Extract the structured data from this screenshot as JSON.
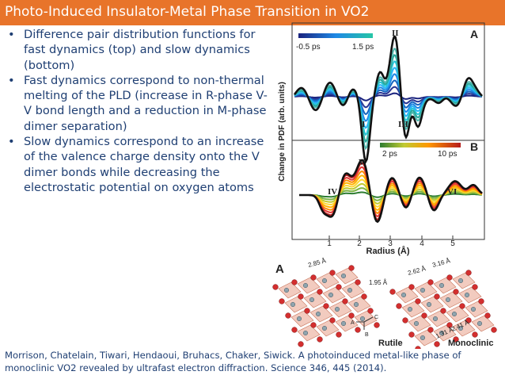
{
  "slide": {
    "title": "Photo-Induced Insulator-Metal Phase Transition in VO2",
    "bullets": [
      "Difference pair distribution functions for fast dynamics (top) and slow dynamics (bottom)",
      "Fast dynamics correspond to non-thermal melting of the PLD (increase in R-phase V-V bond length and a reduction in M-phase dimer separation)",
      "Slow dynamics correspond to an increase of the valence charge density onto the V dimer bonds while decreasing the electrostatic potential on oxygen atoms"
    ],
    "reference": "Morrison, Chatelain, Tiwari, Hendaoui, Bruhacs, Chaker, Siwick. A photoinduced metal-like phase of monoclinic VO2 revealed by ultrafast electron diffraction. Science 346, 445 (2014)."
  },
  "figure": {
    "ylabel": "Change in PDF (arb. units)",
    "xlabel": "Radius (Å)",
    "x_ticks": [
      "1",
      "2",
      "3",
      "4",
      "5"
    ],
    "panel_a": {
      "letter": "A",
      "legend_min": "-0.5 ps",
      "legend_max": "1.5 ps",
      "peaks": [
        "I",
        "II",
        "III"
      ]
    },
    "panel_b": {
      "letter": "B",
      "legend_min": "2 ps",
      "legend_max": "10 ps",
      "peaks": [
        "IV",
        "V",
        "VI"
      ]
    }
  },
  "structure": {
    "letter": "A",
    "rutile_label": "Rutile",
    "monoclinic_label": "Monoclinic",
    "rutile_dims": [
      "2.85 Å",
      "1.95 Å"
    ],
    "monoclinic_dims": [
      "2.62 Å",
      "3.16 Å",
      "1.31 Å",
      "2.41 Å"
    ],
    "axes": [
      "A",
      "C",
      "B"
    ]
  },
  "colors": {
    "title_bar": "#e8742a",
    "text": "#1f3f73"
  }
}
